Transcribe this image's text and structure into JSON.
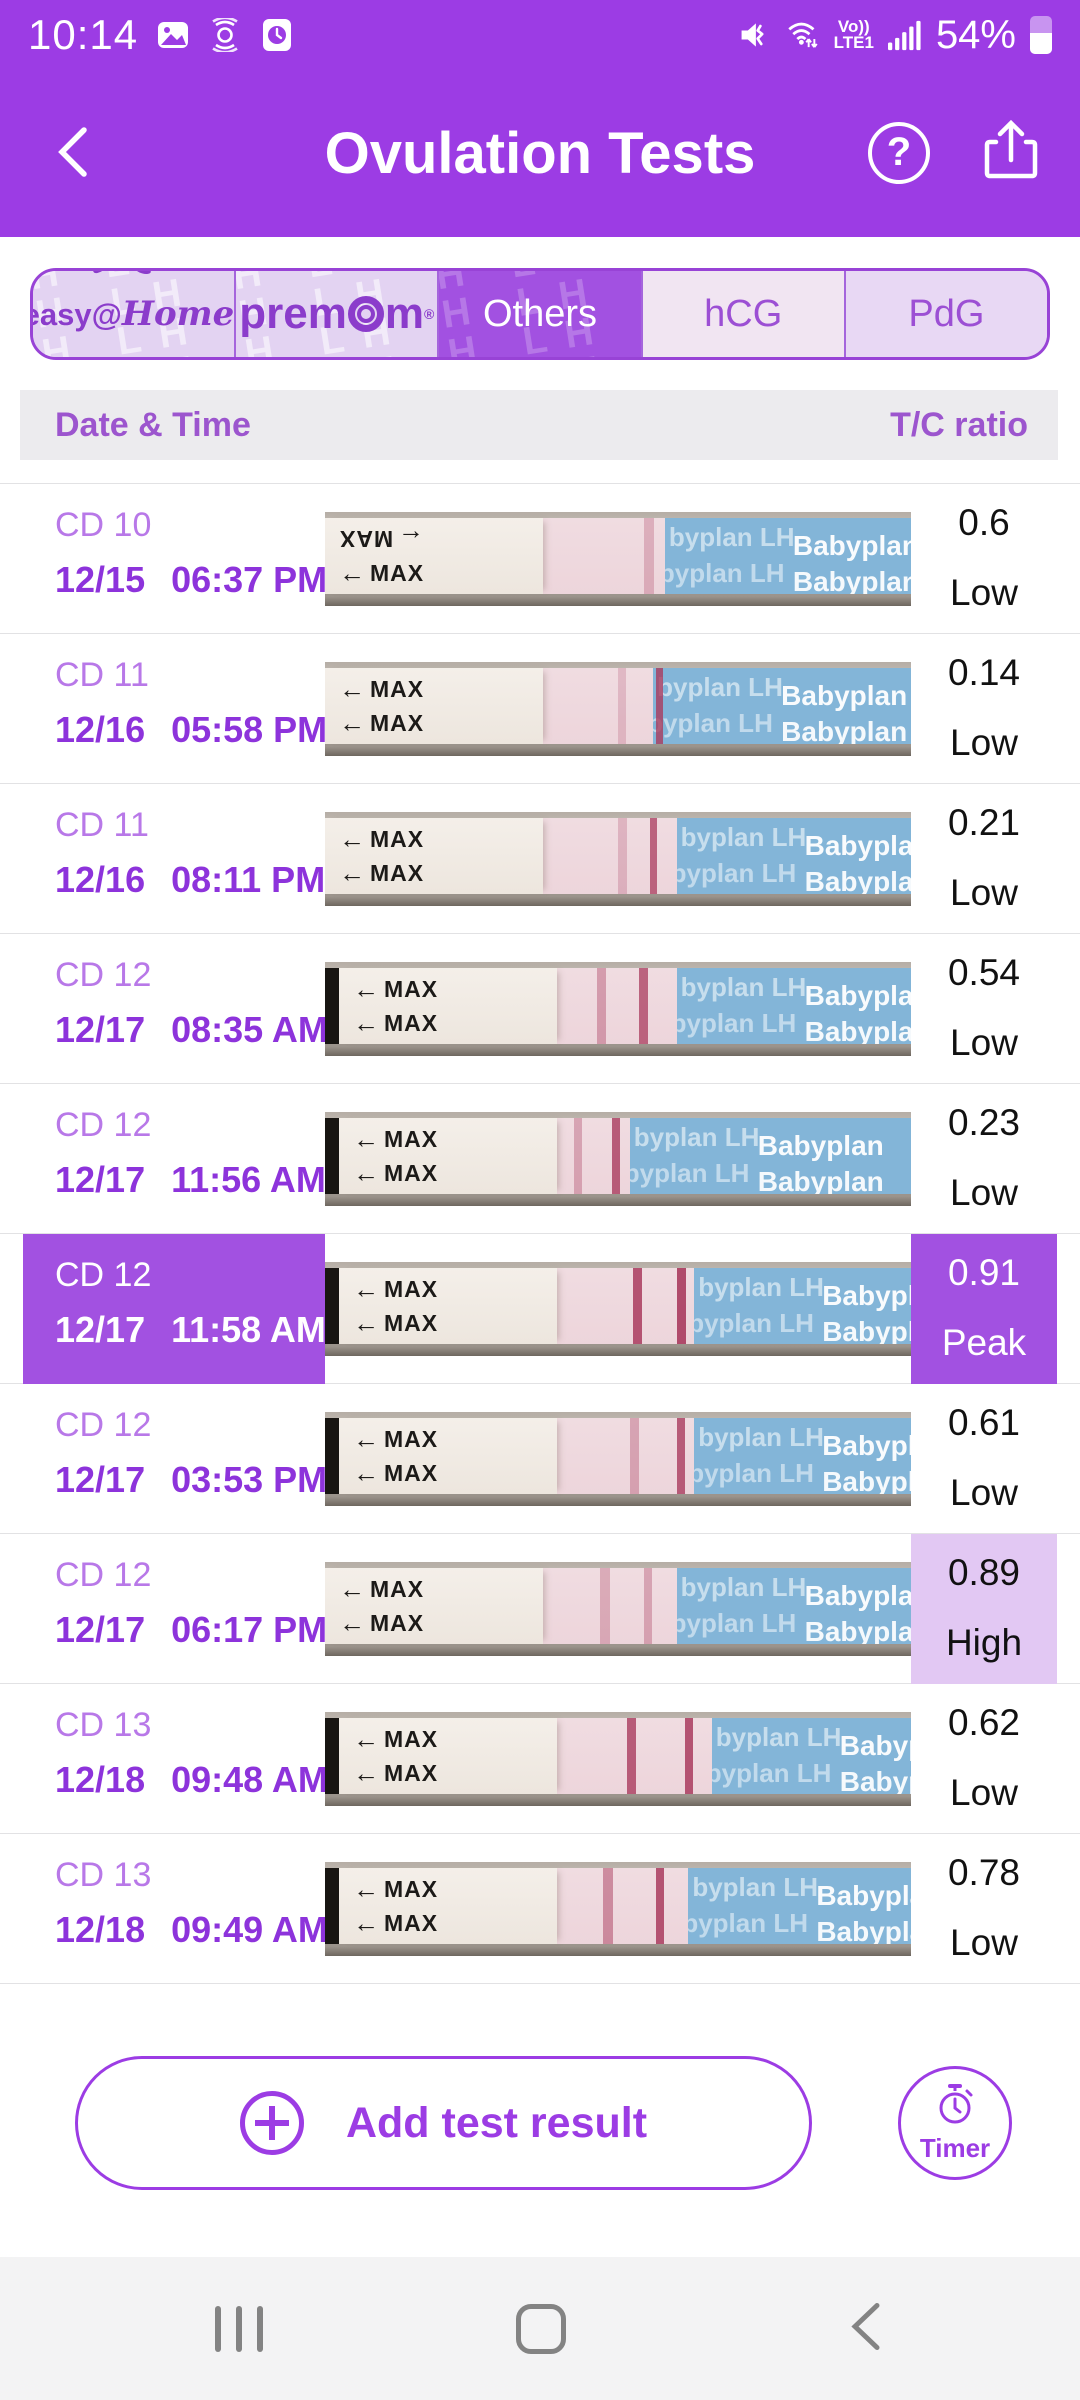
{
  "colors": {
    "accent_purple": "#9C3CE4",
    "peak_purple": "#A251E1",
    "high_lavender": "#E2C8F3",
    "cd_text": "#B878E8",
    "date_text": "#8D33DB",
    "table_header_text": "#9C55CE",
    "strip_blue": "#83B5D8",
    "test_line_red": "#A93B5E"
  },
  "status_bar": {
    "time": "10:14",
    "left_icons": [
      "gallery-icon",
      "ripple-icon",
      "clock-app-icon"
    ],
    "network_label_top": "Vo))",
    "network_label_bottom": "LTE1",
    "battery_percent": "54%"
  },
  "header": {
    "title": "Ovulation Tests"
  },
  "tabs": [
    {
      "label": "easy@Home",
      "style": "easyhome",
      "selected": false,
      "watermark": true
    },
    {
      "label": "premom",
      "style": "premom",
      "selected": false,
      "watermark": true
    },
    {
      "label": "Others",
      "style": "plain",
      "selected": true,
      "watermark": true
    },
    {
      "label": "hCG",
      "style": "hcg",
      "selected": false,
      "watermark": false
    },
    {
      "label": "PdG",
      "style": "pdg",
      "selected": false,
      "watermark": false
    }
  ],
  "tab_watermark": "LH",
  "table": {
    "col_date": "Date & Time",
    "col_ratio": "T/C ratio"
  },
  "strip_labels": {
    "max_label": "MAX",
    "arrow": "←",
    "brand_bold": "Babyplan",
    "brand_watermark": "byplan LH"
  },
  "rows": [
    {
      "cd": "CD 10",
      "date": "12/15",
      "time": "06:37 PM",
      "ratio": "0.6",
      "level": "Low",
      "highlight": "none",
      "strip": {
        "handle": false,
        "flip_top_max": true,
        "blue_start": 0.58,
        "lines": [
          {
            "x": 0.545,
            "o": 0.28,
            "w": 10
          }
        ]
      }
    },
    {
      "cd": "CD 11",
      "date": "12/16",
      "time": "05:58 PM",
      "ratio": "0.14",
      "level": "Low",
      "highlight": "none",
      "strip": {
        "handle": false,
        "flip_top_max": false,
        "blue_start": 0.56,
        "lines": [
          {
            "x": 0.5,
            "o": 0.22,
            "w": 8
          },
          {
            "x": 0.565,
            "o": 0.8,
            "w": 7
          }
        ]
      }
    },
    {
      "cd": "CD 11",
      "date": "12/16",
      "time": "08:11 PM",
      "ratio": "0.21",
      "level": "Low",
      "highlight": "none",
      "strip": {
        "handle": false,
        "flip_top_max": false,
        "blue_start": 0.6,
        "lines": [
          {
            "x": 0.5,
            "o": 0.25,
            "w": 9
          },
          {
            "x": 0.555,
            "o": 0.75,
            "w": 7
          }
        ]
      }
    },
    {
      "cd": "CD 12",
      "date": "12/17",
      "time": "08:35 AM",
      "ratio": "0.54",
      "level": "Low",
      "highlight": "none",
      "strip": {
        "handle": true,
        "flip_top_max": false,
        "blue_start": 0.6,
        "lines": [
          {
            "x": 0.465,
            "o": 0.4,
            "w": 9
          },
          {
            "x": 0.535,
            "o": 0.75,
            "w": 9
          }
        ]
      }
    },
    {
      "cd": "CD 12",
      "date": "12/17",
      "time": "11:56 AM",
      "ratio": "0.23",
      "level": "Low",
      "highlight": "none",
      "strip": {
        "handle": true,
        "flip_top_max": false,
        "blue_start": 0.52,
        "lines": [
          {
            "x": 0.425,
            "o": 0.35,
            "w": 8
          },
          {
            "x": 0.49,
            "o": 0.8,
            "w": 8
          }
        ]
      }
    },
    {
      "cd": "CD 12",
      "date": "12/17",
      "time": "11:58 AM",
      "ratio": "0.91",
      "level": "Peak",
      "highlight": "row",
      "strip": {
        "handle": true,
        "flip_top_max": false,
        "blue_start": 0.63,
        "lines": [
          {
            "x": 0.525,
            "o": 0.85,
            "w": 9
          },
          {
            "x": 0.6,
            "o": 0.9,
            "w": 9
          }
        ]
      }
    },
    {
      "cd": "CD 12",
      "date": "12/17",
      "time": "03:53 PM",
      "ratio": "0.61",
      "level": "Low",
      "highlight": "none",
      "strip": {
        "handle": true,
        "flip_top_max": false,
        "blue_start": 0.63,
        "lines": [
          {
            "x": 0.52,
            "o": 0.35,
            "w": 9
          },
          {
            "x": 0.6,
            "o": 0.8,
            "w": 8
          }
        ]
      }
    },
    {
      "cd": "CD 12",
      "date": "12/17",
      "time": "06:17 PM",
      "ratio": "0.89",
      "level": "High",
      "highlight": "cell",
      "strip": {
        "handle": false,
        "flip_top_max": false,
        "blue_start": 0.6,
        "lines": [
          {
            "x": 0.47,
            "o": 0.3,
            "w": 10
          },
          {
            "x": 0.545,
            "o": 0.35,
            "w": 8
          }
        ]
      }
    },
    {
      "cd": "CD 13",
      "date": "12/18",
      "time": "09:48 AM",
      "ratio": "0.62",
      "level": "Low",
      "highlight": "none",
      "strip": {
        "handle": true,
        "flip_top_max": false,
        "blue_start": 0.66,
        "lines": [
          {
            "x": 0.515,
            "o": 0.8,
            "w": 9
          },
          {
            "x": 0.615,
            "o": 0.85,
            "w": 8
          }
        ]
      }
    },
    {
      "cd": "CD 13",
      "date": "12/18",
      "time": "09:49 AM",
      "ratio": "0.78",
      "level": "Low",
      "highlight": "none",
      "strip": {
        "handle": true,
        "flip_top_max": false,
        "blue_start": 0.62,
        "lines": [
          {
            "x": 0.475,
            "o": 0.5,
            "w": 10
          },
          {
            "x": 0.565,
            "o": 0.85,
            "w": 8
          }
        ]
      }
    }
  ],
  "footer": {
    "add_button_label": "Add test result",
    "timer_label": "Timer"
  }
}
